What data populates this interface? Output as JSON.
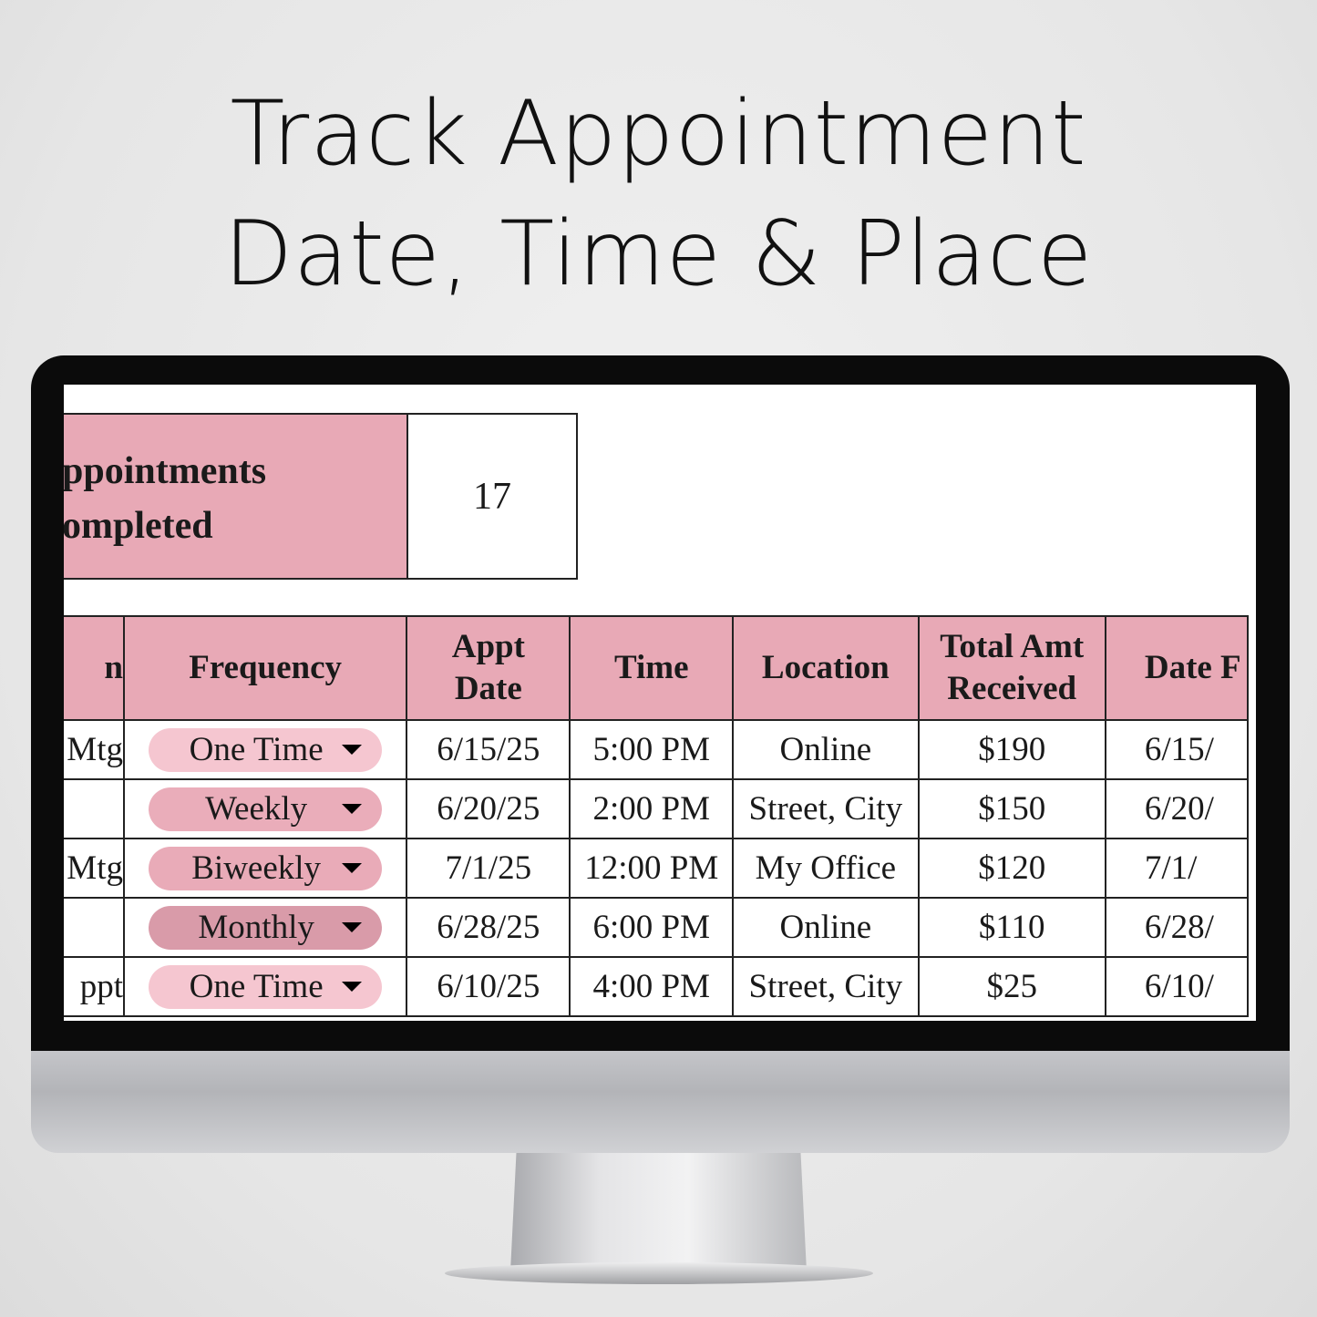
{
  "headline": {
    "line1": "Track Appointment",
    "line2": "Date, Time & Place"
  },
  "summary": {
    "label_line1": "ppointments",
    "label_line2": "ompleted",
    "value": "17"
  },
  "table": {
    "headers": [
      "n",
      "Frequency",
      "Appt\nDate",
      "Time",
      "Location",
      "Total Amt\nReceived",
      "Date F"
    ],
    "rows": [
      {
        "name": "Mtg",
        "frequency": "One Time",
        "date": "6/15/25",
        "time": "5:00 PM",
        "location": "Online",
        "amount": "$190",
        "date_paid": "6/15/"
      },
      {
        "name": "",
        "frequency": "Weekly",
        "date": "6/20/25",
        "time": "2:00 PM",
        "location": "Street, City",
        "amount": "$150",
        "date_paid": "6/20/"
      },
      {
        "name": "Mtg",
        "frequency": "Biweekly",
        "date": "7/1/25",
        "time": "12:00 PM",
        "location": "My Office",
        "amount": "$120",
        "date_paid": "7/1/"
      },
      {
        "name": "",
        "frequency": "Monthly",
        "date": "6/28/25",
        "time": "6:00 PM",
        "location": "Online",
        "amount": "$110",
        "date_paid": "6/28/"
      },
      {
        "name": "ppt",
        "frequency": "One Time",
        "date": "6/10/25",
        "time": "4:00 PM",
        "location": "Street, City",
        "amount": "$25",
        "date_paid": "6/10/"
      }
    ]
  },
  "colors": {
    "header_pink": "#e8a9b6",
    "One Time": "#f5c6d0",
    "Weekly": "#eaadba",
    "Biweekly": "#e9abb8",
    "Monthly": "#d99ba9"
  },
  "icons": {
    "dropdown": "caret-down-icon"
  }
}
